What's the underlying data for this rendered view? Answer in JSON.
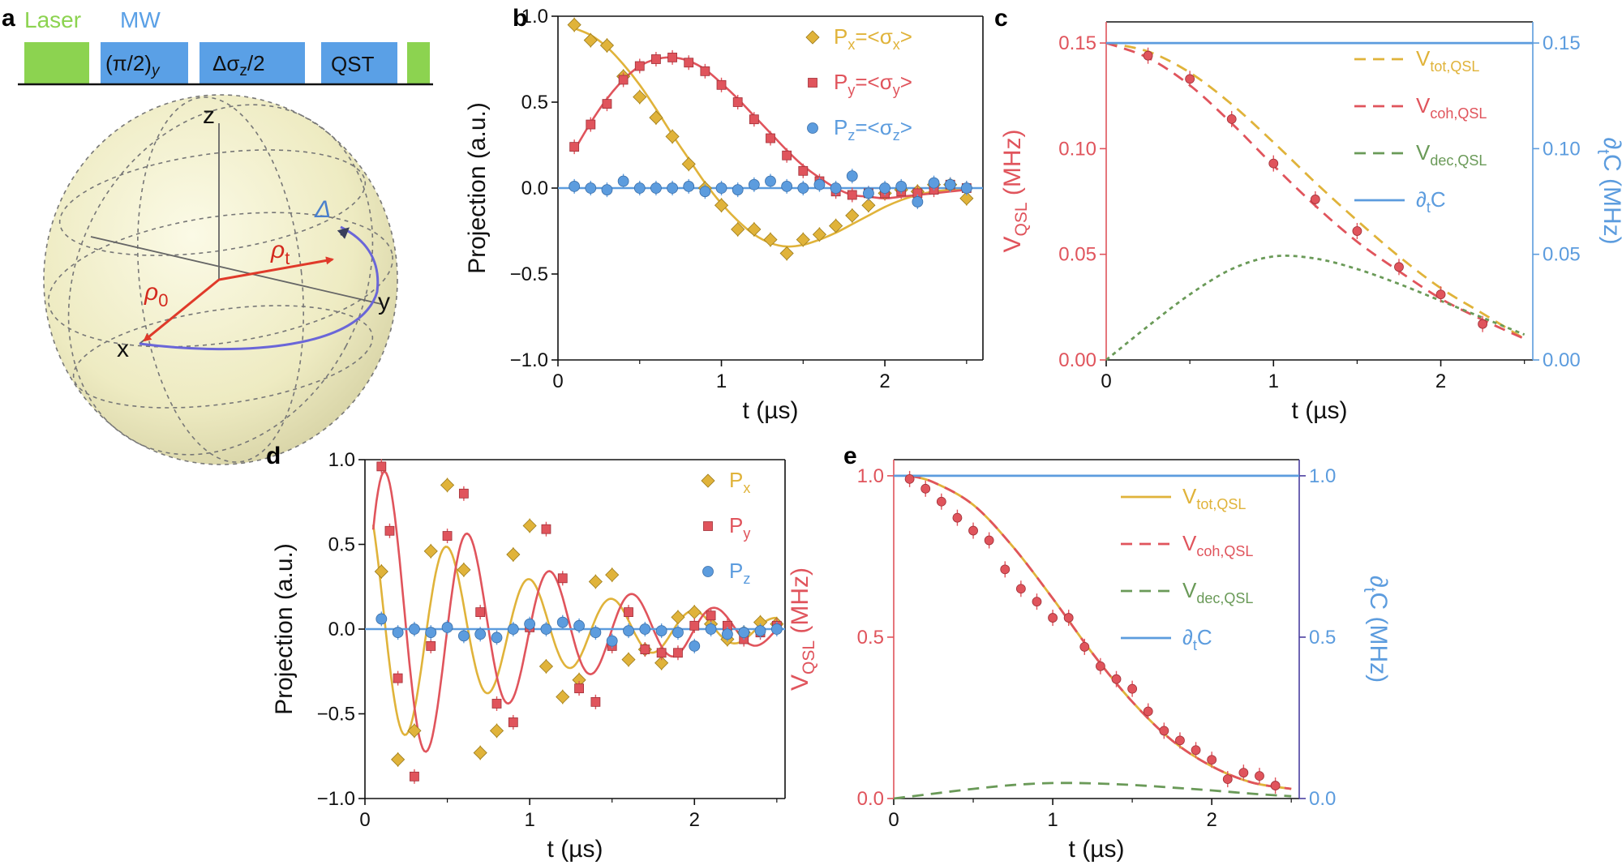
{
  "colors": {
    "x": "#E0B33A",
    "y": "#E0545C",
    "z": "#5C9CDE",
    "tot": "#E0B33A",
    "coh": "#E0545C",
    "dec": "#6A9A58",
    "dtc": "#5C9CDE",
    "laser": "#8CD350",
    "mw": "#5AA0E6",
    "sphere": "#F2F0C8",
    "vec": "#E03A2A",
    "traj": "#6A66D8"
  },
  "panel_a": {
    "label": "a",
    "laser_label": "Laser",
    "mw_label": "MW",
    "pulses": [
      "(π/2)",
      "y",
      "Δσ",
      "z",
      "/2",
      "QST"
    ],
    "axes": {
      "z": "z",
      "x": "x",
      "y": "y"
    },
    "rho0": "ρ",
    "rho0_sub": "0",
    "rhot": "ρ",
    "rhot_sub": "t",
    "delta": "Δ"
  },
  "chart_data": [
    {
      "id": "b",
      "label": "b",
      "type": "scatter",
      "xlabel": "t (µs)",
      "ylabel": "Projection (a.u.)",
      "xlim": [
        0,
        2.6
      ],
      "ylim": [
        -1.0,
        1.0
      ],
      "xticks": [
        0,
        1,
        2
      ],
      "yticks": [
        -1.0,
        -0.5,
        0.0,
        0.5,
        1.0
      ],
      "ytick_labels": [
        "−1.0",
        "−0.5",
        "0.0",
        "0.5",
        "1.0"
      ],
      "legend": {
        "position": "top-right",
        "entries": [
          {
            "series": "Px",
            "main": "P",
            "sub": "x",
            "rest": "=<σ",
            "sub2": "x",
            "end": ">"
          },
          {
            "series": "Py",
            "main": "P",
            "sub": "y",
            "rest": "=<σ",
            "sub2": "y",
            "end": ">"
          },
          {
            "series": "Pz",
            "main": "P",
            "sub": "z",
            "rest": "=<σ",
            "sub2": "z",
            "end": ">"
          }
        ]
      },
      "series": [
        {
          "name": "Px",
          "marker": "diamond",
          "x": [
            0.1,
            0.2,
            0.3,
            0.4,
            0.5,
            0.6,
            0.7,
            0.8,
            0.9,
            1.0,
            1.1,
            1.2,
            1.3,
            1.4,
            1.5,
            1.6,
            1.7,
            1.8,
            1.9,
            2.0,
            2.1,
            2.2,
            2.3,
            2.4,
            2.5
          ],
          "y": [
            0.95,
            0.86,
            0.83,
            0.65,
            0.53,
            0.41,
            0.3,
            0.14,
            0.0,
            -0.1,
            -0.24,
            -0.24,
            -0.3,
            -0.38,
            -0.3,
            -0.27,
            -0.22,
            -0.16,
            -0.1,
            -0.03,
            -0.01,
            -0.02,
            0.02,
            0.02,
            -0.06
          ]
        },
        {
          "name": "Py",
          "marker": "square",
          "x": [
            0.1,
            0.2,
            0.3,
            0.4,
            0.5,
            0.6,
            0.7,
            0.8,
            0.9,
            1.0,
            1.1,
            1.2,
            1.3,
            1.4,
            1.5,
            1.6,
            1.7,
            1.8,
            1.9,
            2.0,
            2.1,
            2.2,
            2.3,
            2.4,
            2.5
          ],
          "y": [
            0.24,
            0.37,
            0.49,
            0.63,
            0.71,
            0.75,
            0.76,
            0.73,
            0.68,
            0.6,
            0.5,
            0.4,
            0.29,
            0.19,
            0.1,
            0.04,
            -0.02,
            -0.04,
            -0.03,
            -0.03,
            -0.02,
            -0.03,
            -0.01,
            0.02,
            0.0
          ]
        },
        {
          "name": "Pz",
          "marker": "circle",
          "x": [
            0.1,
            0.2,
            0.3,
            0.4,
            0.5,
            0.6,
            0.7,
            0.8,
            0.9,
            1.0,
            1.1,
            1.2,
            1.3,
            1.4,
            1.5,
            1.6,
            1.7,
            1.8,
            1.9,
            2.0,
            2.1,
            2.2,
            2.3,
            2.4,
            2.5
          ],
          "y": [
            0.01,
            0.0,
            -0.01,
            0.04,
            0.0,
            0.0,
            0.0,
            0.01,
            -0.02,
            0.0,
            -0.01,
            0.02,
            0.04,
            0.01,
            0.0,
            0.02,
            0.0,
            0.07,
            -0.03,
            0.0,
            0.01,
            -0.08,
            0.03,
            0.02,
            0.0
          ]
        }
      ],
      "fits": [
        {
          "name": "Px_fit",
          "series": "Px",
          "x": [
            0.1,
            0.2,
            0.3,
            0.4,
            0.5,
            0.6,
            0.7,
            0.8,
            0.9,
            1.0,
            1.1,
            1.2,
            1.3,
            1.4,
            1.5,
            1.6,
            1.7,
            1.8,
            1.9,
            2.0,
            2.1,
            2.2,
            2.3,
            2.4,
            2.5
          ],
          "y": [
            0.93,
            0.89,
            0.82,
            0.72,
            0.6,
            0.46,
            0.31,
            0.17,
            0.03,
            -0.09,
            -0.19,
            -0.27,
            -0.32,
            -0.34,
            -0.33,
            -0.3,
            -0.26,
            -0.21,
            -0.16,
            -0.11,
            -0.07,
            -0.04,
            -0.02,
            -0.01,
            0.0
          ]
        },
        {
          "name": "Py_fit",
          "series": "Py",
          "x": [
            0.1,
            0.2,
            0.3,
            0.4,
            0.5,
            0.6,
            0.7,
            0.8,
            0.9,
            1.0,
            1.1,
            1.2,
            1.3,
            1.4,
            1.5,
            1.6,
            1.7,
            1.8,
            1.9,
            2.0,
            2.1,
            2.2,
            2.3,
            2.4,
            2.5
          ],
          "y": [
            0.22,
            0.38,
            0.52,
            0.63,
            0.71,
            0.75,
            0.76,
            0.74,
            0.69,
            0.61,
            0.52,
            0.42,
            0.32,
            0.22,
            0.13,
            0.06,
            0.0,
            -0.04,
            -0.05,
            -0.06,
            -0.05,
            -0.04,
            -0.03,
            -0.02,
            -0.01
          ]
        },
        {
          "name": "Pz_fit",
          "series": "Pz",
          "x": [
            0.0,
            2.6
          ],
          "y": [
            0.0,
            0.0
          ]
        }
      ]
    },
    {
      "id": "c",
      "label": "c",
      "type": "line",
      "xlabel": "t (µs)",
      "ylabel_main": "V",
      "ylabel_sub": "QSL",
      "ylabel_unit": " (MHz)",
      "y2label": "∂",
      "y2label_sub": "t",
      "y2label_unit": "C (MHz)",
      "xlim": [
        0,
        2.55
      ],
      "ylim": [
        0,
        0.16
      ],
      "xticks": [
        0,
        1,
        2
      ],
      "yticks": [
        0.0,
        0.05,
        0.1,
        0.15
      ],
      "ytick_labels": [
        "0.00",
        "0.05",
        "0.10",
        "0.15"
      ],
      "y2ticks": [
        0.0,
        0.05,
        0.1,
        0.15
      ],
      "y2tick_labels": [
        "0.00",
        "0.05",
        "0.10",
        "0.15"
      ],
      "legend": {
        "position": "right",
        "entries": [
          {
            "series": "tot",
            "style": "dashed",
            "main": "V",
            "sub": "tot,QSL"
          },
          {
            "series": "coh",
            "style": "dashed",
            "main": "V",
            "sub": "coh,QSL"
          },
          {
            "series": "dec",
            "style": "dashed",
            "main": "V",
            "sub": "dec,QSL"
          },
          {
            "series": "dtc",
            "style": "solid",
            "main": "∂",
            "sub": "t",
            "rest": "C"
          }
        ]
      },
      "series": [
        {
          "name": "V_tot",
          "key": "tot",
          "style": "dashed",
          "x": [
            0,
            0.25,
            0.5,
            0.75,
            1.0,
            1.25,
            1.5,
            1.75,
            2.0,
            2.25,
            2.5
          ],
          "y": [
            0.15,
            0.146,
            0.136,
            0.121,
            0.103,
            0.084,
            0.066,
            0.049,
            0.034,
            0.022,
            0.01
          ]
        },
        {
          "name": "V_coh",
          "key": "coh",
          "style": "dashed",
          "x": [
            0,
            0.25,
            0.5,
            0.75,
            1.0,
            1.25,
            1.5,
            1.75,
            2.0,
            2.25,
            2.5
          ],
          "y": [
            0.15,
            0.143,
            0.13,
            0.112,
            0.092,
            0.073,
            0.056,
            0.042,
            0.029,
            0.019,
            0.01
          ]
        },
        {
          "name": "V_dec",
          "key": "dec",
          "style": "dotted",
          "x": [
            0,
            0.25,
            0.5,
            0.75,
            1.0,
            1.25,
            1.5,
            1.75,
            2.0,
            2.25,
            2.5
          ],
          "y": [
            0.0,
            0.016,
            0.031,
            0.043,
            0.049,
            0.048,
            0.043,
            0.036,
            0.028,
            0.02,
            0.012
          ]
        },
        {
          "name": "dtC",
          "key": "dtc",
          "style": "solid",
          "axis": "right",
          "x": [
            0,
            2.55
          ],
          "y": [
            0.15,
            0.15
          ]
        },
        {
          "name": "V_meas",
          "key": "coh",
          "style": "points",
          "x": [
            0.25,
            0.5,
            0.75,
            1.0,
            1.25,
            1.5,
            1.75,
            2.0,
            2.25
          ],
          "y": [
            0.144,
            0.133,
            0.114,
            0.093,
            0.076,
            0.061,
            0.044,
            0.031,
            0.017
          ]
        }
      ]
    },
    {
      "id": "d",
      "label": "d",
      "type": "scatter",
      "xlabel": "t (µs)",
      "ylabel": "Projection (a.u.)",
      "xlim": [
        0,
        2.55
      ],
      "ylim": [
        -1.0,
        1.0
      ],
      "xticks": [
        0,
        1,
        2
      ],
      "yticks": [
        -1.0,
        -0.5,
        0.0,
        0.5,
        1.0
      ],
      "ytick_labels": [
        "−1.0",
        "−0.5",
        "0.0",
        "0.5",
        "1.0"
      ],
      "legend": {
        "position": "top-right",
        "entries": [
          {
            "series": "Px",
            "main": "P",
            "sub": "x"
          },
          {
            "series": "Py",
            "main": "P",
            "sub": "y"
          },
          {
            "series": "Pz",
            "main": "P",
            "sub": "z"
          }
        ]
      },
      "series": [
        {
          "name": "Px",
          "marker": "diamond",
          "x": [
            0.1,
            0.2,
            0.3,
            0.4,
            0.5,
            0.6,
            0.7,
            0.8,
            0.9,
            1.0,
            1.1,
            1.2,
            1.3,
            1.4,
            1.5,
            1.6,
            1.7,
            1.8,
            1.9,
            2.0,
            2.1,
            2.2,
            2.3,
            2.4,
            2.5
          ],
          "y": [
            0.34,
            -0.77,
            -0.6,
            0.46,
            0.85,
            0.35,
            -0.73,
            -0.6,
            0.44,
            0.61,
            -0.22,
            -0.4,
            -0.3,
            0.28,
            0.32,
            -0.18,
            -0.12,
            -0.2,
            0.07,
            0.1,
            0.03,
            -0.06,
            -0.02,
            0.04,
            0.03
          ]
        },
        {
          "name": "Py",
          "marker": "square",
          "x": [
            0.1,
            0.15,
            0.2,
            0.3,
            0.4,
            0.5,
            0.6,
            0.7,
            0.8,
            0.9,
            1.0,
            1.1,
            1.2,
            1.3,
            1.4,
            1.5,
            1.6,
            1.7,
            1.8,
            1.9,
            2.0,
            2.1,
            2.2,
            2.3,
            2.4,
            2.5
          ],
          "y": [
            0.96,
            0.58,
            -0.29,
            -0.87,
            -0.1,
            0.55,
            0.8,
            0.1,
            -0.44,
            -0.55,
            0.01,
            0.59,
            0.3,
            -0.35,
            -0.43,
            -0.1,
            0.1,
            -0.12,
            -0.14,
            -0.14,
            0.02,
            0.08,
            0.02,
            -0.06,
            -0.02,
            0.02
          ]
        },
        {
          "name": "Pz",
          "marker": "circle",
          "x": [
            0.1,
            0.2,
            0.3,
            0.4,
            0.5,
            0.6,
            0.7,
            0.8,
            0.9,
            1.0,
            1.1,
            1.2,
            1.3,
            1.4,
            1.5,
            1.6,
            1.7,
            1.8,
            1.9,
            2.0,
            2.1,
            2.2,
            2.3,
            2.4,
            2.5
          ],
          "y": [
            0.06,
            -0.02,
            0.0,
            -0.02,
            0.01,
            -0.04,
            -0.03,
            -0.05,
            0.0,
            0.03,
            0.0,
            0.04,
            0.02,
            -0.02,
            -0.07,
            -0.01,
            0.0,
            -0.01,
            -0.02,
            -0.1,
            0.0,
            -0.03,
            -0.02,
            -0.01,
            0.0
          ]
        }
      ],
      "fits": [
        {
          "name": "Px_fit",
          "series": "Px",
          "func": "cos",
          "amp": 1.0,
          "decay": 1.0,
          "freq": 2.0,
          "phase": 0.0
        },
        {
          "name": "Py_fit",
          "series": "Py",
          "func": "sin",
          "amp": 1.0,
          "decay": 1.0,
          "freq": 2.0,
          "phase": 0.0
        },
        {
          "name": "Pz_fit",
          "series": "Pz",
          "func": "zero"
        }
      ]
    },
    {
      "id": "e",
      "label": "e",
      "type": "line",
      "xlabel": "t (µs)",
      "ylabel_main": "V",
      "ylabel_sub": "QSL",
      "ylabel_unit": " (MHz)",
      "y2label": "∂",
      "y2label_sub": "t",
      "y2label_unit": "C (MHz)",
      "xlim": [
        0,
        2.55
      ],
      "ylim": [
        0,
        1.05
      ],
      "xticks": [
        0,
        1,
        2
      ],
      "yticks": [
        0.0,
        0.5,
        1.0
      ],
      "ytick_labels": [
        "0.0",
        "0.5",
        "1.0"
      ],
      "y2ticks": [
        0.0,
        0.5,
        1.0
      ],
      "y2tick_labels": [
        "0.0",
        "0.5",
        "1.0"
      ],
      "legend": {
        "position": "right",
        "entries": [
          {
            "series": "tot",
            "style": "solid",
            "main": "V",
            "sub": "tot,QSL"
          },
          {
            "series": "coh",
            "style": "dashed",
            "main": "V",
            "sub": "coh,QSL"
          },
          {
            "series": "dec",
            "style": "dashed",
            "main": "V",
            "sub": "dec,QSL"
          },
          {
            "series": "dtc",
            "style": "solid",
            "main": "∂",
            "sub": "t",
            "rest": "C"
          }
        ]
      },
      "series": [
        {
          "name": "V_tot",
          "key": "tot",
          "style": "solid",
          "x": [
            0.1,
            0.25,
            0.5,
            0.75,
            1.0,
            1.25,
            1.5,
            1.75,
            2.0,
            2.25,
            2.5
          ],
          "y": [
            1.0,
            0.98,
            0.91,
            0.78,
            0.62,
            0.45,
            0.3,
            0.18,
            0.1,
            0.05,
            0.03
          ]
        },
        {
          "name": "V_coh",
          "key": "coh",
          "style": "dashed",
          "x": [
            0.1,
            0.25,
            0.5,
            0.75,
            1.0,
            1.25,
            1.5,
            1.75,
            2.0,
            2.25,
            2.5
          ],
          "y": [
            1.0,
            0.98,
            0.91,
            0.78,
            0.62,
            0.45,
            0.3,
            0.18,
            0.1,
            0.05,
            0.03
          ]
        },
        {
          "name": "V_dec",
          "key": "dec",
          "style": "dashed",
          "x": [
            0.0,
            0.25,
            0.5,
            0.75,
            1.0,
            1.25,
            1.5,
            1.75,
            2.0,
            2.25,
            2.5
          ],
          "y": [
            0.0,
            0.015,
            0.03,
            0.042,
            0.048,
            0.047,
            0.042,
            0.034,
            0.025,
            0.015,
            0.007
          ]
        },
        {
          "name": "dtC",
          "key": "dtc",
          "style": "solid",
          "axis": "right",
          "x": [
            0,
            2.55
          ],
          "y": [
            1.0,
            1.0
          ]
        },
        {
          "name": "V_meas",
          "key": "coh",
          "style": "points",
          "x": [
            0.1,
            0.2,
            0.3,
            0.4,
            0.5,
            0.6,
            0.7,
            0.8,
            0.9,
            1.0,
            1.1,
            1.2,
            1.3,
            1.4,
            1.5,
            1.6,
            1.7,
            1.8,
            1.9,
            2.0,
            2.1,
            2.2,
            2.3,
            2.4
          ],
          "y": [
            0.99,
            0.96,
            0.92,
            0.87,
            0.83,
            0.8,
            0.71,
            0.65,
            0.61,
            0.56,
            0.56,
            0.47,
            0.41,
            0.37,
            0.34,
            0.27,
            0.21,
            0.18,
            0.15,
            0.12,
            0.06,
            0.08,
            0.07,
            0.04
          ]
        }
      ]
    }
  ]
}
